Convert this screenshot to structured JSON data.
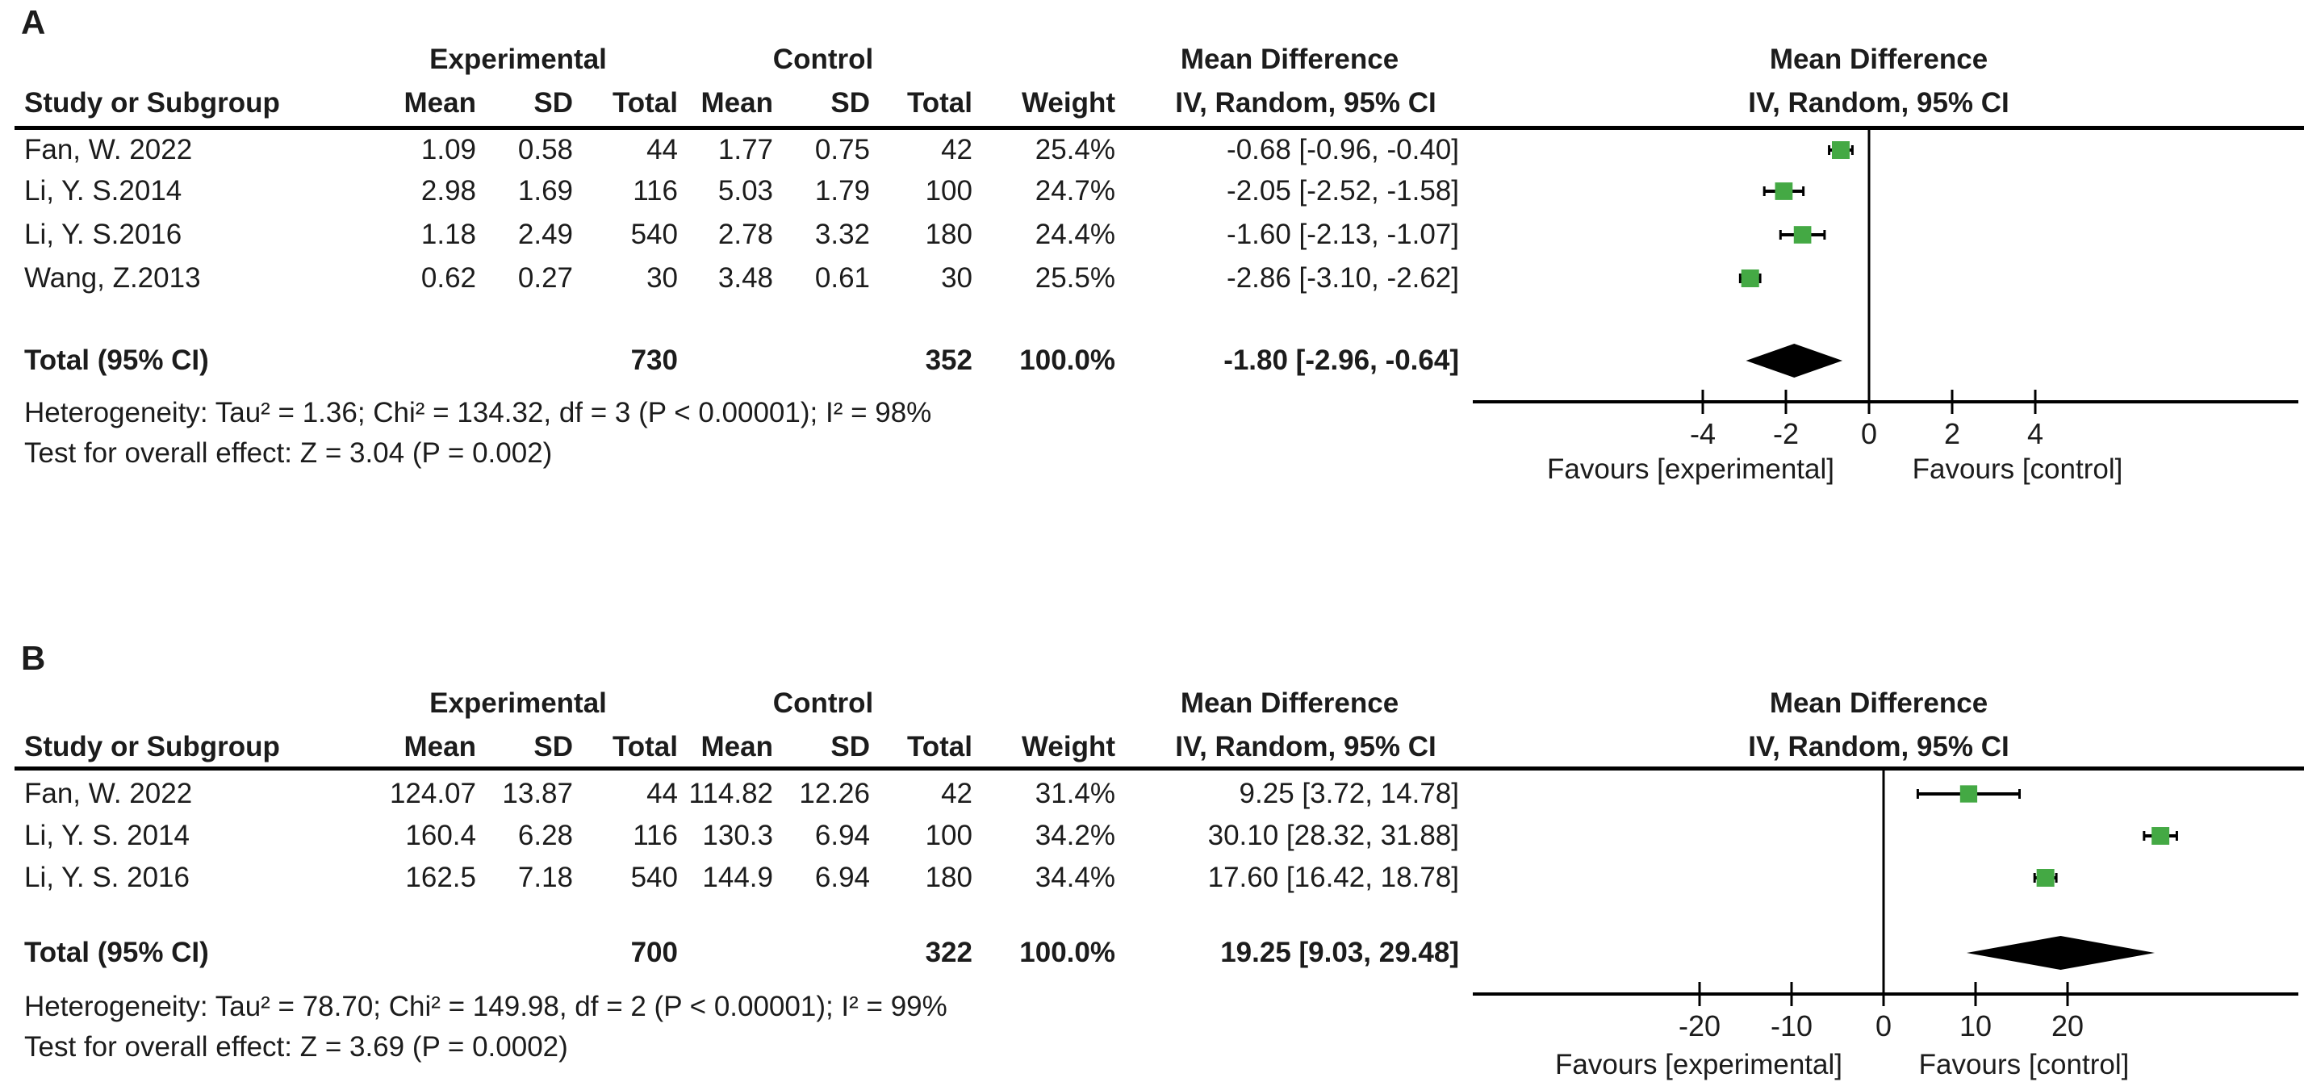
{
  "colors": {
    "marker_green": "#44a944",
    "diamond_black": "#000000",
    "line_black": "#000000",
    "text": "#1c1c1c"
  },
  "panels": [
    {
      "label": "A",
      "headers": {
        "experimental": "Experimental",
        "control": "Control",
        "mean_difference_col": "Mean Difference",
        "mean_difference_plot": "Mean Difference",
        "study": "Study or Subgroup",
        "mean": "Mean",
        "sd": "SD",
        "total": "Total",
        "weight": "Weight",
        "iv_col": "IV, Random, 95% CI",
        "iv_plot": "IV, Random, 95% CI"
      },
      "rows": [
        {
          "study": "Fan, W. 2022",
          "exp_mean": "1.09",
          "exp_sd": "0.58",
          "exp_total": "44",
          "ctl_mean": "1.77",
          "ctl_sd": "0.75",
          "ctl_total": "42",
          "weight": "25.4%",
          "md_ci": "-0.68 [-0.96, -0.40]"
        },
        {
          "study": "Li, Y. S.2014",
          "exp_mean": "2.98",
          "exp_sd": "1.69",
          "exp_total": "116",
          "ctl_mean": "5.03",
          "ctl_sd": "1.79",
          "ctl_total": "100",
          "weight": "24.7%",
          "md_ci": "-2.05 [-2.52, -1.58]"
        },
        {
          "study": "Li, Y. S.2016",
          "exp_mean": "1.18",
          "exp_sd": "2.49",
          "exp_total": "540",
          "ctl_mean": "2.78",
          "ctl_sd": "3.32",
          "ctl_total": "180",
          "weight": "24.4%",
          "md_ci": "-1.60 [-2.13, -1.07]"
        },
        {
          "study": "Wang, Z.2013",
          "exp_mean": "0.62",
          "exp_sd": "0.27",
          "exp_total": "30",
          "ctl_mean": "3.48",
          "ctl_sd": "0.61",
          "ctl_total": "30",
          "weight": "25.5%",
          "md_ci": "-2.86 [-3.10, -2.62]"
        }
      ],
      "total": {
        "label": "Total (95% CI)",
        "exp_total": "730",
        "ctl_total": "352",
        "weight": "100.0%",
        "md_ci": "-1.80 [-2.96, -0.64]"
      },
      "heterogeneity": "Heterogeneity: Tau² = 1.36; Chi² = 134.32, df = 3 (P < 0.00001); I² = 98%",
      "overall_effect": "Test for overall effect: Z = 3.04 (P = 0.002)",
      "favours_left": "Favours [experimental]",
      "favours_right": "Favours [control]"
    },
    {
      "label": "B",
      "headers": {
        "experimental": "Experimental",
        "control": "Control",
        "mean_difference_col": "Mean Difference",
        "mean_difference_plot": "Mean Difference",
        "study": "Study or Subgroup",
        "mean": "Mean",
        "sd": "SD",
        "total": "Total",
        "weight": "Weight",
        "iv_col": "IV, Random, 95% CI",
        "iv_plot": "IV, Random, 95% CI"
      },
      "rows": [
        {
          "study": "Fan, W. 2022",
          "exp_mean": "124.07",
          "exp_sd": "13.87",
          "exp_total": "44",
          "ctl_mean": "114.82",
          "ctl_sd": "12.26",
          "ctl_total": "42",
          "weight": "31.4%",
          "md_ci": "9.25 [3.72, 14.78]"
        },
        {
          "study": "Li, Y. S. 2014",
          "exp_mean": "160.4",
          "exp_sd": "6.28",
          "exp_total": "116",
          "ctl_mean": "130.3",
          "ctl_sd": "6.94",
          "ctl_total": "100",
          "weight": "34.2%",
          "md_ci": "30.10 [28.32, 31.88]"
        },
        {
          "study": "Li, Y. S. 2016",
          "exp_mean": "162.5",
          "exp_sd": "7.18",
          "exp_total": "540",
          "ctl_mean": "144.9",
          "ctl_sd": "6.94",
          "ctl_total": "180",
          "weight": "34.4%",
          "md_ci": "17.60 [16.42, 18.78]"
        }
      ],
      "total": {
        "label": "Total (95% CI)",
        "exp_total": "700",
        "ctl_total": "322",
        "weight": "100.0%",
        "md_ci": "19.25 [9.03, 29.48]"
      },
      "heterogeneity": "Heterogeneity: Tau² = 78.70; Chi² = 149.98, df = 2 (P < 0.00001); I² = 99%",
      "overall_effect": "Test for overall effect: Z = 3.69 (P = 0.0002)",
      "favours_left": "Favours [experimental]",
      "favours_right": "Favours [control]"
    }
  ],
  "chart_data": [
    {
      "type": "scatter",
      "variant": "forest_plot",
      "title": "Mean Difference",
      "subtitle": "IV, Random, 95% CI",
      "effect_measure": "Mean Difference, IV, Random, 95% CI",
      "studies": [
        {
          "name": "Fan, W. 2022",
          "estimate": -0.68,
          "ci": [
            -0.96,
            -0.4
          ],
          "weight_pct": 25.4
        },
        {
          "name": "Li, Y. S.2014",
          "estimate": -2.05,
          "ci": [
            -2.52,
            -1.58
          ],
          "weight_pct": 24.7
        },
        {
          "name": "Li, Y. S.2016",
          "estimate": -1.6,
          "ci": [
            -2.13,
            -1.07
          ],
          "weight_pct": 24.4
        },
        {
          "name": "Wang, Z.2013",
          "estimate": -2.86,
          "ci": [
            -3.1,
            -2.62
          ],
          "weight_pct": 25.5
        }
      ],
      "total": {
        "estimate": -1.8,
        "ci": [
          -2.96,
          -0.64
        ]
      },
      "x_ticks": [
        -4,
        -2,
        0,
        2,
        4
      ],
      "xlim": [
        -9.8,
        10.3
      ],
      "zero_line": 0,
      "favours": [
        "Favours [experimental]",
        "Favours [control]"
      ]
    },
    {
      "type": "scatter",
      "variant": "forest_plot",
      "title": "Mean Difference",
      "subtitle": "IV, Random, 95% CI",
      "effect_measure": "Mean Difference, IV, Random, 95% CI",
      "studies": [
        {
          "name": "Fan, W. 2022",
          "estimate": 9.25,
          "ci": [
            3.72,
            14.78
          ],
          "weight_pct": 31.4
        },
        {
          "name": "Li, Y. S. 2014",
          "estimate": 30.1,
          "ci": [
            28.32,
            31.88
          ],
          "weight_pct": 34.2
        },
        {
          "name": "Li, Y. S. 2016",
          "estimate": 17.6,
          "ci": [
            16.42,
            18.78
          ],
          "weight_pct": 34.4
        }
      ],
      "total": {
        "estimate": 19.25,
        "ci": [
          9.03,
          29.48
        ]
      },
      "x_ticks": [
        -20,
        -10,
        0,
        10,
        20
      ],
      "xlim": [
        -45.8,
        45.1
      ],
      "zero_line": 0,
      "favours": [
        "Favours [experimental]",
        "Favours [control]"
      ]
    }
  ]
}
